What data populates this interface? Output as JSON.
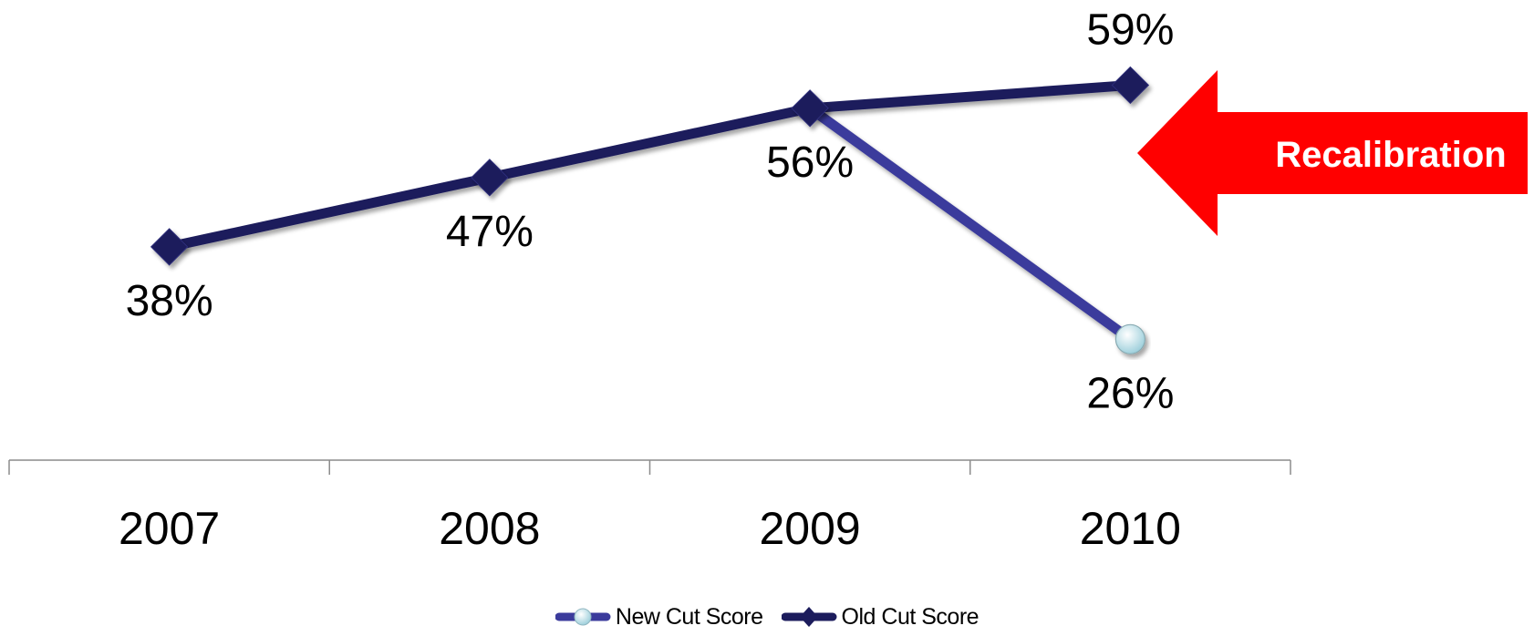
{
  "chart_data": {
    "type": "line",
    "categories": [
      "2007",
      "2008",
      "2009",
      "2010"
    ],
    "series": [
      {
        "name": "New Cut Score",
        "values": [
          null,
          null,
          56,
          26
        ],
        "labels": [
          "",
          "",
          "",
          "26%"
        ],
        "color": "#3b3b9c",
        "marker": "circle",
        "marker_color": "#bfe6ee"
      },
      {
        "name": "Old Cut Score",
        "values": [
          38,
          47,
          56,
          59
        ],
        "labels": [
          "38%",
          "47%",
          "56%",
          "59%"
        ],
        "color": "#1c1c5c",
        "marker": "diamond",
        "marker_color": "#1c1c5c"
      }
    ],
    "ylim": [
      10,
      60
    ],
    "grid": false,
    "legend_position": "bottom",
    "annotation": {
      "text": "Recalibration",
      "color": "#ff0000",
      "target_category": "2010"
    }
  }
}
